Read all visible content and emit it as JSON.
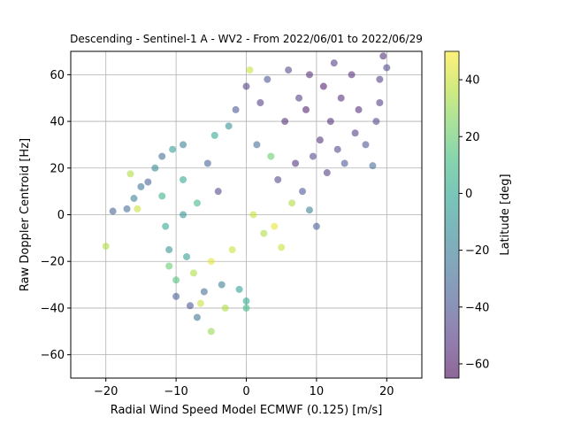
{
  "chart_data": {
    "type": "scatter",
    "title": "Descending - Sentinel-1 A - WV2 - From 2022/06/01 to 2022/06/29",
    "xlabel": "Radial Wind Speed Model ECMWF (0.125) [m/s]",
    "ylabel": "Raw Doppler Centroid [Hz]",
    "xlim": [
      -25,
      25
    ],
    "ylim": [
      -70,
      70
    ],
    "xticks": [
      -20,
      -10,
      0,
      10,
      20
    ],
    "yticks": [
      -60,
      -40,
      -20,
      0,
      20,
      40,
      60
    ],
    "grid": true,
    "marker_alpha": 0.55,
    "colorbar": {
      "label": "Latitude [deg]",
      "colormap": "viridis",
      "range": [
        -65,
        50
      ],
      "ticks": [
        -60,
        -40,
        -20,
        0,
        20,
        40
      ]
    },
    "series": [
      {
        "points": [
          [
            -20,
            -13.5,
            35
          ],
          [
            -19,
            1.5,
            -35
          ],
          [
            -17,
            2.5,
            -30
          ],
          [
            -16.5,
            17.5,
            35
          ],
          [
            -16,
            7,
            -20
          ],
          [
            -15.5,
            2.5,
            40
          ],
          [
            -15,
            12,
            -25
          ],
          [
            -14,
            14,
            -35
          ],
          [
            -13,
            20,
            -15
          ],
          [
            -12,
            25,
            -30
          ],
          [
            -12,
            8,
            5
          ],
          [
            -11.5,
            -5,
            0
          ],
          [
            -11,
            -15,
            -10
          ],
          [
            -11,
            -22,
            20
          ],
          [
            -10.5,
            28,
            -5
          ],
          [
            -10,
            -28,
            15
          ],
          [
            -10,
            -35,
            -35
          ],
          [
            -9,
            30,
            -20
          ],
          [
            -9,
            15,
            0
          ],
          [
            -9,
            0,
            -10
          ],
          [
            -8.5,
            -18,
            -5
          ],
          [
            -8,
            -39,
            -40
          ],
          [
            -7.5,
            -25,
            35
          ],
          [
            -7,
            5,
            10
          ],
          [
            -7,
            -44,
            -25
          ],
          [
            -6.5,
            -38,
            40
          ],
          [
            -6,
            -33,
            -30
          ],
          [
            -5.5,
            22,
            -35
          ],
          [
            -5,
            -50,
            30
          ],
          [
            -5,
            -20,
            45
          ],
          [
            -4.5,
            34,
            0
          ],
          [
            -4,
            10,
            -45
          ],
          [
            -3.5,
            -30,
            -20
          ],
          [
            -3,
            -40,
            35
          ],
          [
            -2.5,
            38,
            -10
          ],
          [
            -2,
            -15,
            40
          ],
          [
            -1.5,
            45,
            -40
          ],
          [
            -1,
            -32,
            -5
          ],
          [
            0,
            -37,
            0
          ],
          [
            0,
            -40,
            10
          ],
          [
            0,
            55,
            -50
          ],
          [
            0.5,
            62,
            40
          ],
          [
            1,
            0,
            40
          ],
          [
            1.5,
            30,
            -30
          ],
          [
            2,
            48,
            -50
          ],
          [
            2.5,
            -8,
            35
          ],
          [
            3,
            58,
            -40
          ],
          [
            3.5,
            25,
            20
          ],
          [
            4,
            -5,
            45
          ],
          [
            4.5,
            15,
            -45
          ],
          [
            5,
            -14,
            40
          ],
          [
            5.5,
            40,
            -55
          ],
          [
            6,
            62,
            -45
          ],
          [
            6.5,
            5,
            35
          ],
          [
            7,
            22,
            -55
          ],
          [
            7.5,
            50,
            -50
          ],
          [
            8,
            10,
            -40
          ],
          [
            8.5,
            45,
            -60
          ],
          [
            9,
            2,
            -20
          ],
          [
            9,
            60,
            -55
          ],
          [
            9.5,
            25,
            -45
          ],
          [
            10,
            -5,
            -35
          ],
          [
            10.5,
            32,
            -55
          ],
          [
            11,
            55,
            -60
          ],
          [
            11.5,
            18,
            -50
          ],
          [
            12,
            40,
            -55
          ],
          [
            12.5,
            65,
            -50
          ],
          [
            13,
            28,
            -45
          ],
          [
            13.5,
            50,
            -55
          ],
          [
            14,
            22,
            -40
          ],
          [
            15,
            60,
            -55
          ],
          [
            15.5,
            35,
            -50
          ],
          [
            16,
            45,
            -55
          ],
          [
            17,
            30,
            -40
          ],
          [
            18,
            21,
            -30
          ],
          [
            18.5,
            40,
            -45
          ],
          [
            19,
            58,
            -50
          ],
          [
            19.5,
            68,
            -55
          ],
          [
            20,
            63,
            -45
          ],
          [
            19,
            48,
            -50
          ]
        ]
      }
    ]
  }
}
